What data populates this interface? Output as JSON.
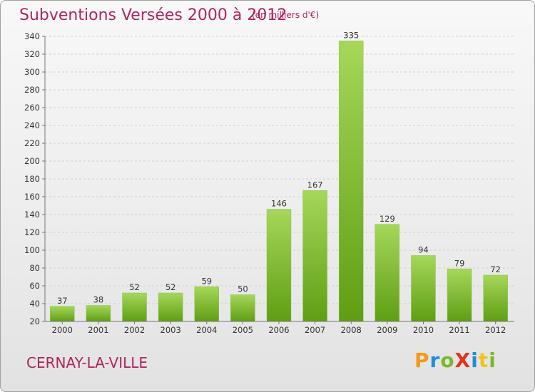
{
  "header": {
    "title": "Subventions Versées 2000 à 2012",
    "unit": "(en milliers d'€)"
  },
  "footer": {
    "commune": "CERNAY-LA-VILLE",
    "logo": "ProXiti"
  },
  "colors": {
    "accent": "#b0245c",
    "bar_light": "#a6d75a",
    "bar_dark": "#5f9e13"
  },
  "chart_data": {
    "type": "bar",
    "categories": [
      "2000",
      "2001",
      "2002",
      "2003",
      "2004",
      "2005",
      "2006",
      "2007",
      "2008",
      "2009",
      "2010",
      "2011",
      "2012"
    ],
    "values": [
      37,
      38,
      52,
      52,
      59,
      50,
      146,
      167,
      335,
      129,
      94,
      79,
      72
    ],
    "title": "Subventions Versées 2000 à 2012",
    "unit": "(en milliers d'€)",
    "xlabel": "",
    "ylabel": "",
    "ylim": [
      20,
      340
    ],
    "yticks": [
      20,
      40,
      60,
      80,
      100,
      120,
      140,
      160,
      180,
      200,
      220,
      240,
      260,
      280,
      300,
      320,
      340
    ],
    "grid": true
  }
}
